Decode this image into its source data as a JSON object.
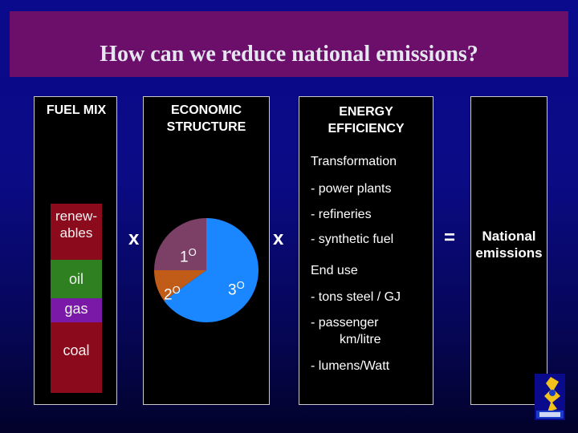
{
  "title": "How can we reduce national emissions?",
  "fuel_mix": {
    "heading": "FUEL MIX",
    "segments": [
      {
        "label_line1": "renew-",
        "label_line2": "ables",
        "color": "#8b0a1c"
      },
      {
        "label": "oil",
        "color": "#2e8020"
      },
      {
        "label": "gas",
        "color": "#7a18a8"
      },
      {
        "label": "coal",
        "color": "#8b0a1c"
      }
    ]
  },
  "economic_structure": {
    "heading_line1": "ECONOMIC",
    "heading_line2": "STRUCTURE",
    "pie": {
      "slices": [
        {
          "label": "1",
          "superscript": "O",
          "color": "#7c4067",
          "fraction": 0.25
        },
        {
          "label": "2",
          "superscript": "O",
          "color": "#c05c18",
          "fraction": 0.1
        },
        {
          "label": "3",
          "superscript": "O",
          "color": "#1a86ff",
          "fraction": 0.65
        }
      ]
    }
  },
  "energy_efficiency": {
    "heading_line1": "ENERGY",
    "heading_line2": "EFFICIENCY",
    "lines": [
      "Transformation",
      "- power plants",
      "- refineries",
      "- synthetic fuel",
      "End use",
      "- tons steel / GJ",
      "- passenger",
      "km/litre",
      "- lumens/Watt"
    ]
  },
  "operators": {
    "multiply1": "x",
    "multiply2": "x",
    "equals": "="
  },
  "national_emissions": {
    "line1": "National",
    "line2": "emissions"
  },
  "colors": {
    "background": "#0a0a8c",
    "title_bar": "#6b0f6b",
    "panel": "#000000",
    "panel_border": "#c9c9c9"
  }
}
